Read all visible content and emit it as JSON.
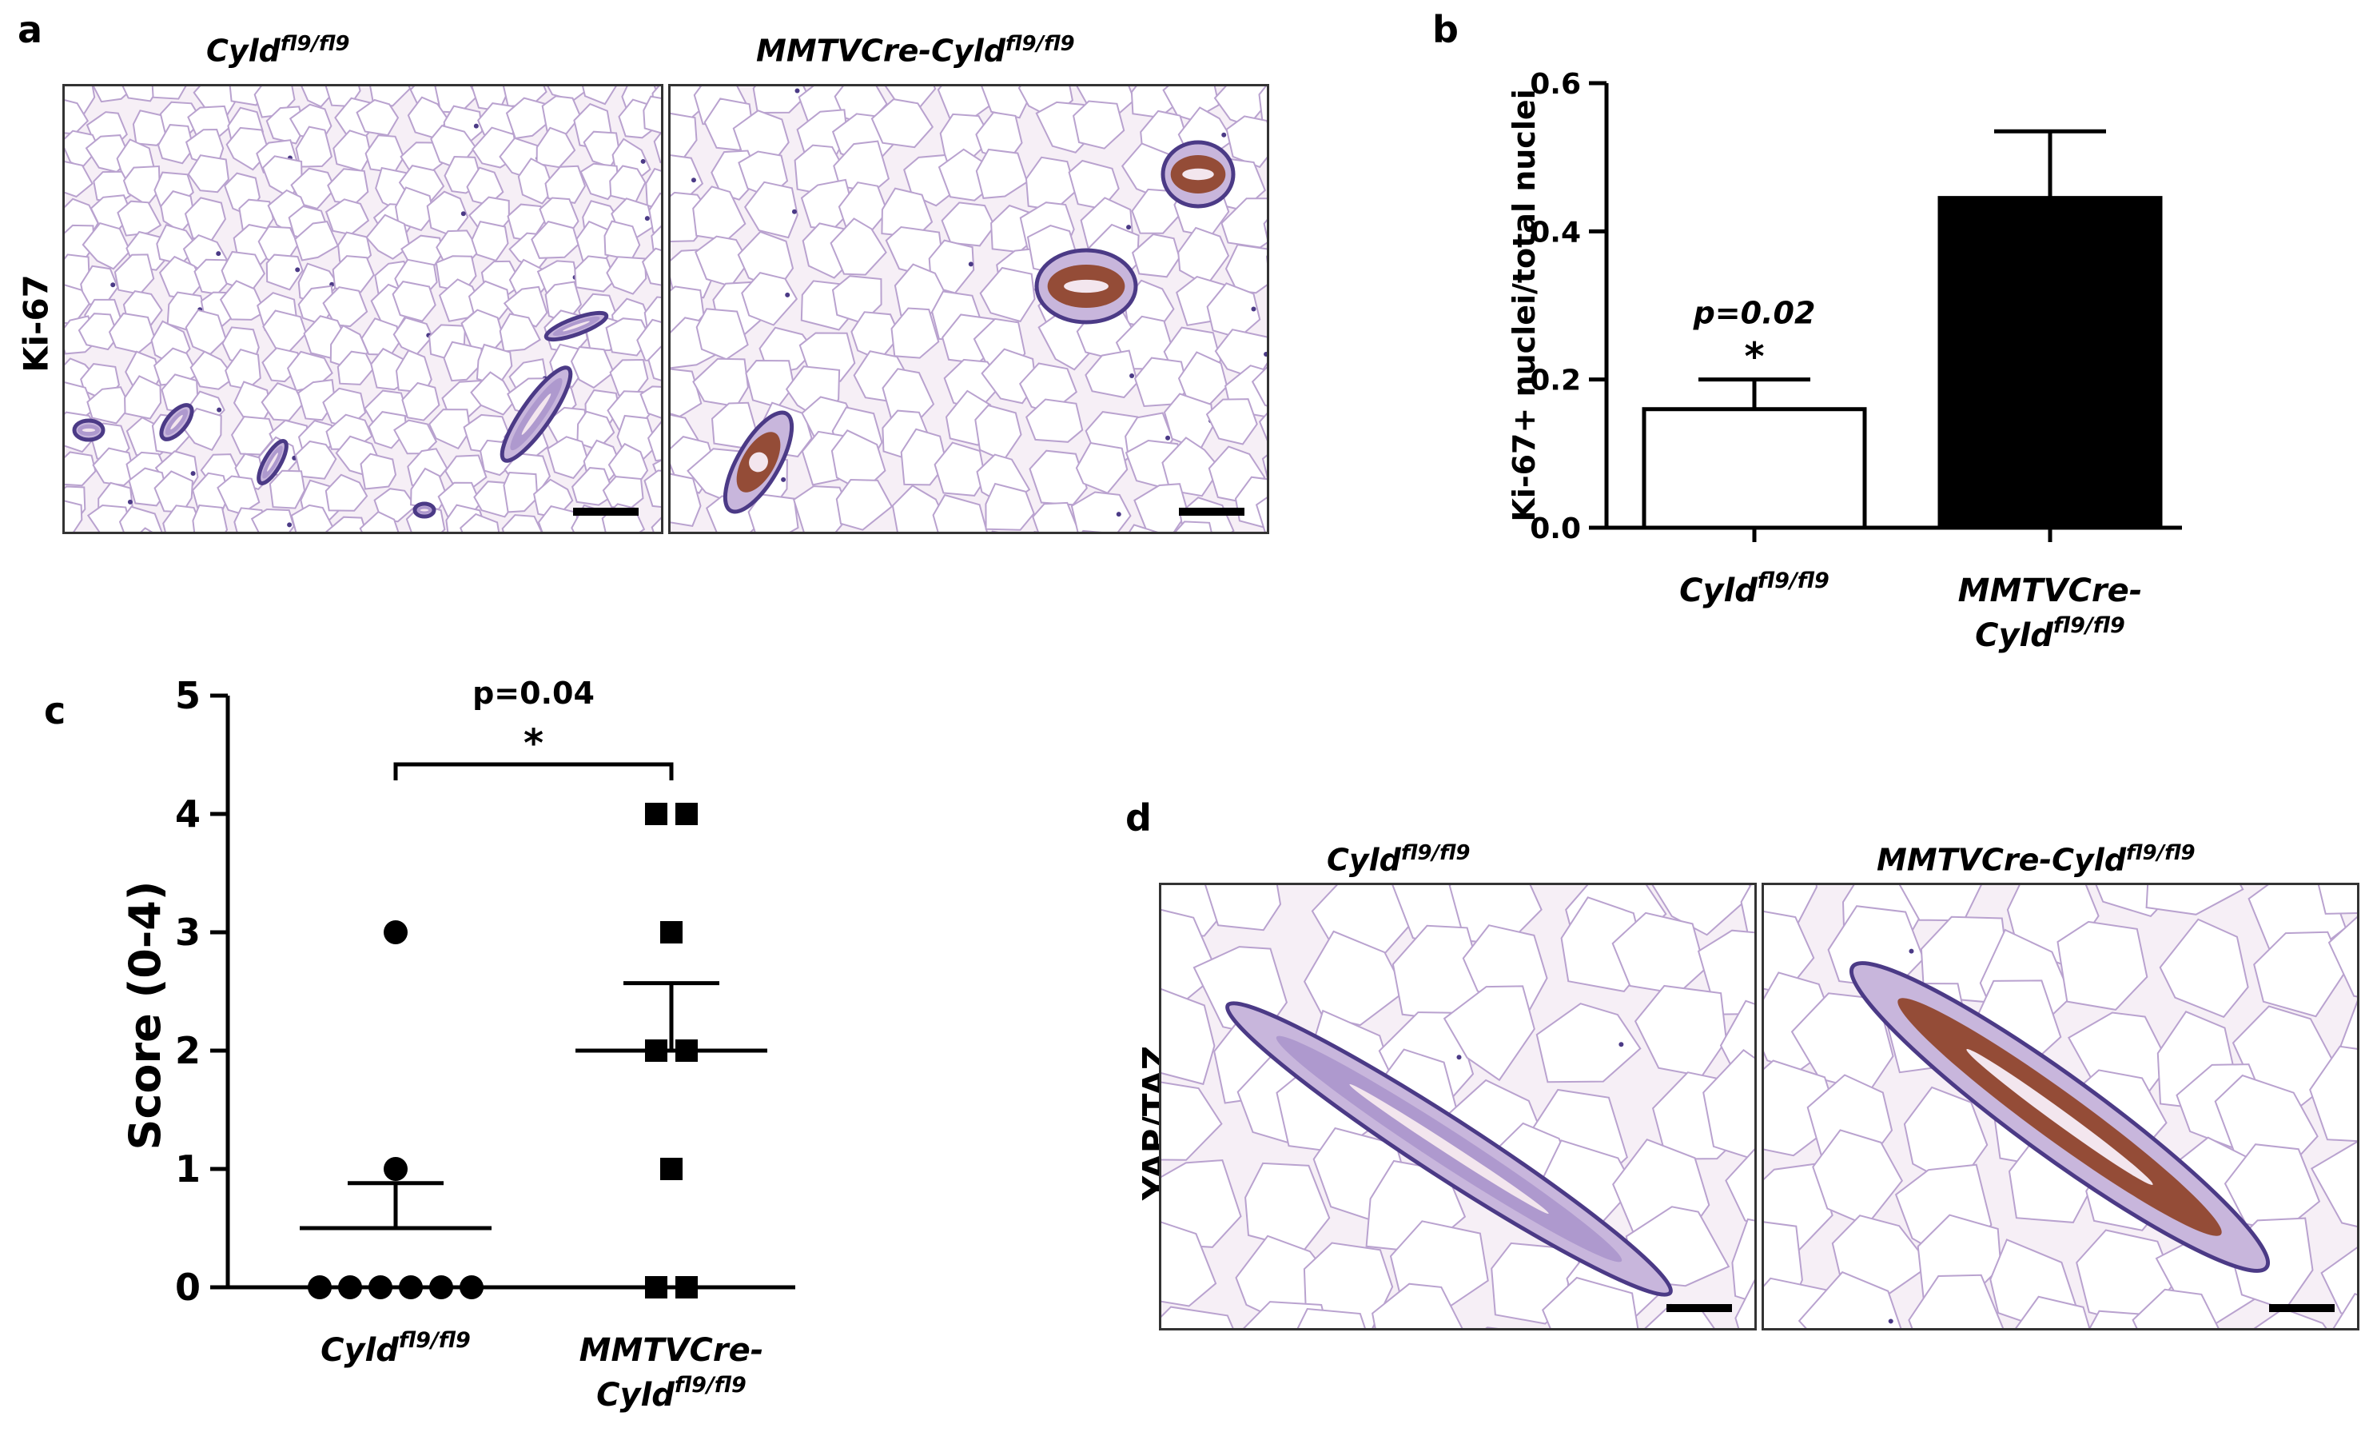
{
  "panels": {
    "a": {
      "letter": "a",
      "row_label": "Ki-67",
      "left_title": {
        "base": "Cyld",
        "sup": "fl9/fl9"
      },
      "right_title": {
        "base": "MMTVCre-Cyld",
        "sup": "fl9/fl9"
      }
    },
    "b": {
      "letter": "b"
    },
    "c": {
      "letter": "c"
    },
    "d": {
      "letter": "d",
      "row_label": "YAP/TAZ",
      "left_title": {
        "base": "Cyld",
        "sup": "fl9/fl9"
      },
      "right_title": {
        "base": "MMTVCre-Cyld",
        "sup": "fl9/fl9"
      }
    }
  },
  "colors": {
    "adipose_bg": "#f6eff6",
    "cell_wall": "#b9a2cf",
    "nuclei": "#4b3a86",
    "brown_stain": "#8b3a1a",
    "bar_filled": "#000000",
    "bar_empty": "#ffffff"
  },
  "chart_data": [
    {
      "type": "bar",
      "panel": "b",
      "ylabel": "Ki-67+ nuclei/total nuclei",
      "ylim": [
        0,
        0.6
      ],
      "yticks": [
        "0.0",
        "0.2",
        "0.4",
        "0.6"
      ],
      "categories": [
        {
          "line1": "Cyld",
          "sup1": "fl9/fl9",
          "line2": "",
          "sup2": ""
        },
        {
          "line1": "MMTVCre-",
          "sup1": "",
          "line2": "Cyld",
          "sup2": "fl9/fl9"
        }
      ],
      "values": [
        0.16,
        0.445
      ],
      "errors": [
        0.04,
        0.09
      ],
      "fills": [
        "#ffffff",
        "#000000"
      ],
      "annotation": {
        "text": "p=0.02",
        "star": "*"
      }
    },
    {
      "type": "scatter",
      "panel": "c",
      "ylabel": "Score (0-4)",
      "ylim": [
        0,
        5
      ],
      "yticks": [
        "0",
        "1",
        "2",
        "3",
        "4",
        "5"
      ],
      "categories": [
        {
          "line1": "Cyld",
          "sup1": "fl9/fl9",
          "line2": "",
          "sup2": ""
        },
        {
          "line1": "MMTVCre-",
          "sup1": "",
          "line2": "Cyld",
          "sup2": "fl9/fl9"
        }
      ],
      "groups": [
        {
          "marker": "circle",
          "points": [
            3,
            1,
            0,
            0,
            0,
            0,
            0,
            0
          ],
          "mean": 0.5,
          "sem": 0.38
        },
        {
          "marker": "square",
          "points": [
            4,
            4,
            3,
            2,
            2,
            1,
            0,
            0
          ],
          "mean": 2.0,
          "sem": 0.57
        }
      ],
      "annotation": {
        "text": "p=0.04",
        "star": "*"
      }
    }
  ]
}
